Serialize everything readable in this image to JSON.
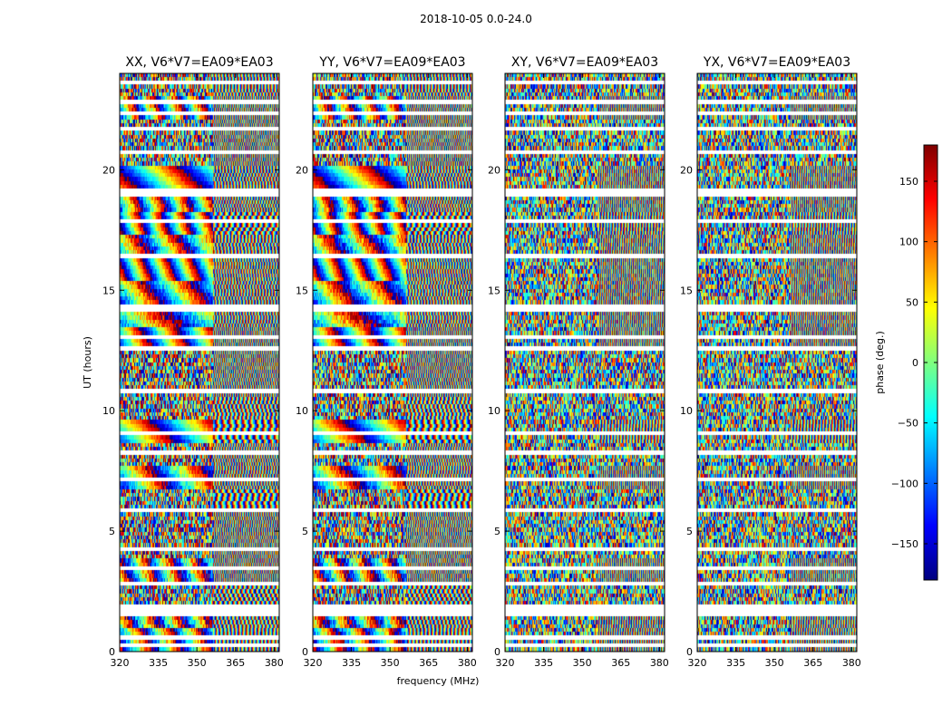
{
  "suptitle": "2018-10-05 0.0-24.0",
  "chart_data": {
    "type": "heatmap",
    "title": "2018-10-05 0.0-24.0",
    "xlabel": "frequency (MHz)",
    "ylabel": "UT (hours)",
    "xlim": [
      320,
      382
    ],
    "ylim": [
      0,
      24
    ],
    "xticks": [
      320,
      335,
      350,
      365,
      380
    ],
    "yticks": [
      0,
      5,
      10,
      15,
      20
    ],
    "panels": [
      {
        "title": "XX, V6*V7=EA09*EA03",
        "kind": "parallel"
      },
      {
        "title": "YY, V6*V7=EA09*EA03",
        "kind": "parallel"
      },
      {
        "title": "XY, V6*V7=EA09*EA03",
        "kind": "cross"
      },
      {
        "title": "YX, V6*V7=EA09*EA03",
        "kind": "cross"
      }
    ],
    "colorbar": {
      "label": "phase (deg.)",
      "range": [
        -180,
        180
      ],
      "ticks": [
        -150,
        -100,
        -50,
        0,
        50,
        100,
        150
      ],
      "tick_labels": [
        "−150",
        "−100",
        "−50",
        "0",
        "50",
        "100",
        "150"
      ],
      "colormap": "jet",
      "colors": [
        "#00007f",
        "#0000ff",
        "#007fff",
        "#00ffff",
        "#7fff7f",
        "#ffff00",
        "#ff7f00",
        "#ff0000",
        "#7f0000"
      ]
    },
    "flagged_gaps_hours": [
      0.25,
      0.55,
      1.55,
      1.75,
      2.75,
      3.45,
      4.25,
      5.85,
      7.15,
      8.25,
      9.05,
      10.85,
      12.55,
      13.05,
      14.25,
      16.35,
      17.85,
      19.05,
      20.75,
      21.65,
      22.35,
      22.85,
      23.55
    ]
  }
}
